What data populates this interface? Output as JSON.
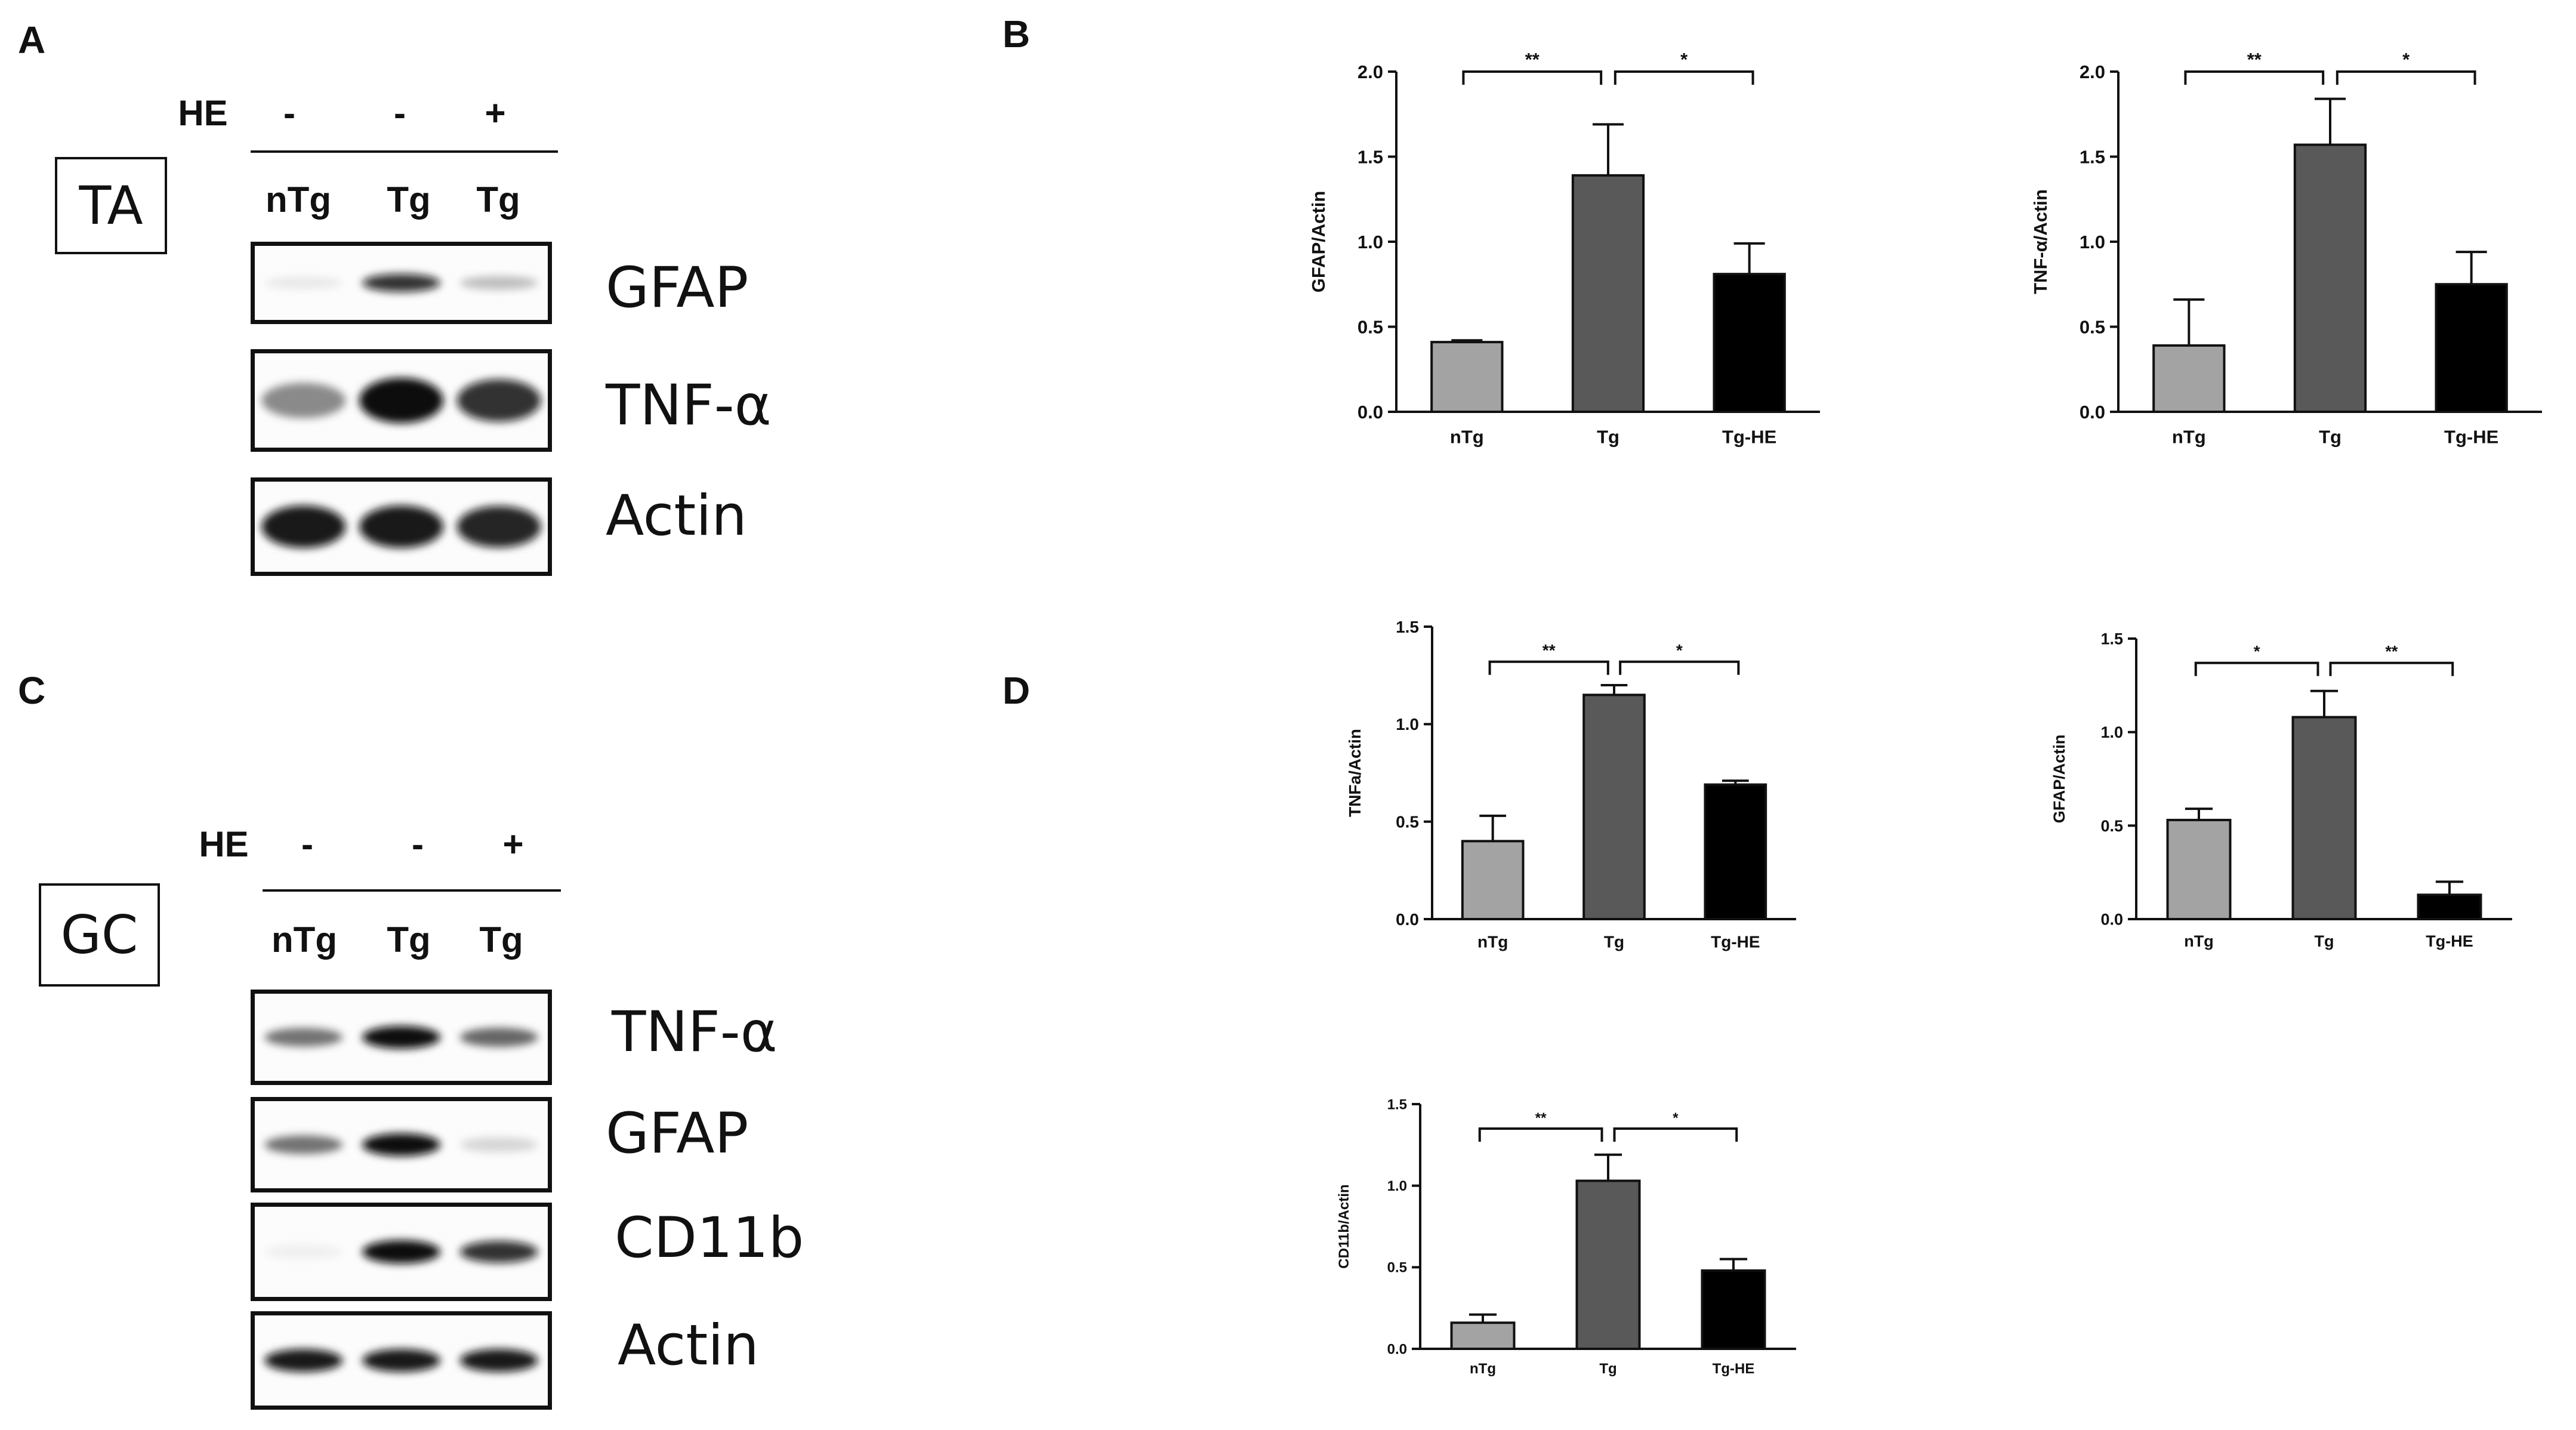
{
  "panel_letters": {
    "a": "A",
    "b": "B",
    "c": "C",
    "d": "D"
  },
  "western_blots": [
    {
      "tissue": "TA",
      "he_label": "HE",
      "he_signs": [
        "-",
        "-",
        "+"
      ],
      "lanes": [
        "nTg",
        "Tg",
        "Tg"
      ],
      "rows": [
        {
          "protein": "GFAP",
          "bands": [
            0.08,
            0.85,
            0.25
          ],
          "shape": "thin"
        },
        {
          "protein": "TNF-α",
          "bands": [
            0.45,
            1.0,
            0.85
          ],
          "shape": "thick"
        },
        {
          "protein": "Actin",
          "bands": [
            0.95,
            0.95,
            0.9
          ],
          "shape": "thick"
        }
      ]
    },
    {
      "tissue": "GC",
      "he_label": "HE",
      "he_signs": [
        "-",
        "-",
        "+"
      ],
      "lanes": [
        "nTg",
        "Tg",
        "Tg"
      ],
      "rows": [
        {
          "protein": "TNF-α",
          "bands": [
            0.55,
            1.0,
            0.6
          ],
          "shape": "thin"
        },
        {
          "protein": "GFAP",
          "bands": [
            0.55,
            1.0,
            0.15
          ],
          "shape": "thin"
        },
        {
          "protein": "CD11b",
          "bands": [
            0.05,
            1.0,
            0.85
          ],
          "shape": "thin"
        },
        {
          "protein": "Actin",
          "bands": [
            0.95,
            0.95,
            0.95
          ],
          "shape": "thin"
        }
      ]
    }
  ],
  "chart_data": [
    {
      "panel": "B",
      "type": "bar",
      "categories": [
        "nTg",
        "Tg",
        "Tg-HE"
      ],
      "values": [
        0.41,
        1.39,
        0.81
      ],
      "errors": [
        0.01,
        0.3,
        0.18
      ],
      "ylabel": "GFAP/Actin",
      "xlabel": "",
      "title": "",
      "ylim": [
        0,
        2.0
      ],
      "yticks": [
        "0.0",
        "0.5",
        "1.0",
        "1.5",
        "2.0"
      ],
      "colors": [
        "#a3a3a3",
        "#595959",
        "#000000"
      ],
      "significance": [
        {
          "from": 0,
          "to": 1,
          "label": "**"
        },
        {
          "from": 1,
          "to": 2,
          "label": "*"
        }
      ],
      "bracket_y": 2.0
    },
    {
      "panel": "B",
      "type": "bar",
      "categories": [
        "nTg",
        "Tg",
        "Tg-HE"
      ],
      "values": [
        0.39,
        1.57,
        0.75
      ],
      "errors": [
        0.27,
        0.27,
        0.19
      ],
      "ylabel": "TNF-α/Actin",
      "xlabel": "",
      "title": "",
      "ylim": [
        0,
        2.0
      ],
      "yticks": [
        "0.0",
        "0.5",
        "1.0",
        "1.5",
        "2.0"
      ],
      "colors": [
        "#a3a3a3",
        "#595959",
        "#000000"
      ],
      "significance": [
        {
          "from": 0,
          "to": 1,
          "label": "**"
        },
        {
          "from": 1,
          "to": 2,
          "label": "*"
        }
      ],
      "bracket_y": 2.0
    },
    {
      "panel": "D",
      "type": "bar",
      "categories": [
        "nTg",
        "Tg",
        "Tg-HE"
      ],
      "values": [
        0.4,
        1.15,
        0.69
      ],
      "errors": [
        0.13,
        0.05,
        0.02
      ],
      "ylabel": "TNFa/Actin",
      "xlabel": "",
      "title": "",
      "ylim": [
        0,
        1.5
      ],
      "yticks": [
        "0.0",
        "0.5",
        "1.0",
        "1.5"
      ],
      "colors": [
        "#a3a3a3",
        "#595959",
        "#000000"
      ],
      "significance": [
        {
          "from": 0,
          "to": 1,
          "label": "**"
        },
        {
          "from": 1,
          "to": 2,
          "label": "*"
        }
      ],
      "bracket_y": 1.32
    },
    {
      "panel": "D",
      "type": "bar",
      "categories": [
        "nTg",
        "Tg",
        "Tg-HE"
      ],
      "values": [
        0.53,
        1.08,
        0.13
      ],
      "errors": [
        0.06,
        0.14,
        0.07
      ],
      "ylabel": "GFAP/Actin",
      "xlabel": "",
      "title": "",
      "ylim": [
        0,
        1.5
      ],
      "yticks": [
        "0.0",
        "0.5",
        "1.0",
        "1.5"
      ],
      "colors": [
        "#a3a3a3",
        "#595959",
        "#000000"
      ],
      "significance": [
        {
          "from": 0,
          "to": 1,
          "label": "*"
        },
        {
          "from": 1,
          "to": 2,
          "label": "**"
        }
      ],
      "bracket_y": 1.37
    },
    {
      "panel": "D",
      "type": "bar",
      "categories": [
        "nTg",
        "Tg",
        "Tg-HE"
      ],
      "values": [
        0.16,
        1.03,
        0.48
      ],
      "errors": [
        0.05,
        0.16,
        0.07
      ],
      "ylabel": "CD11b/Actin",
      "xlabel": "",
      "title": "",
      "ylim": [
        0,
        1.5
      ],
      "yticks": [
        "0.0",
        "0.5",
        "1.0",
        "1.5"
      ],
      "colors": [
        "#a3a3a3",
        "#595959",
        "#000000"
      ],
      "significance": [
        {
          "from": 0,
          "to": 1,
          "label": "**"
        },
        {
          "from": 1,
          "to": 2,
          "label": "*"
        }
      ],
      "bracket_y": 1.35
    }
  ]
}
